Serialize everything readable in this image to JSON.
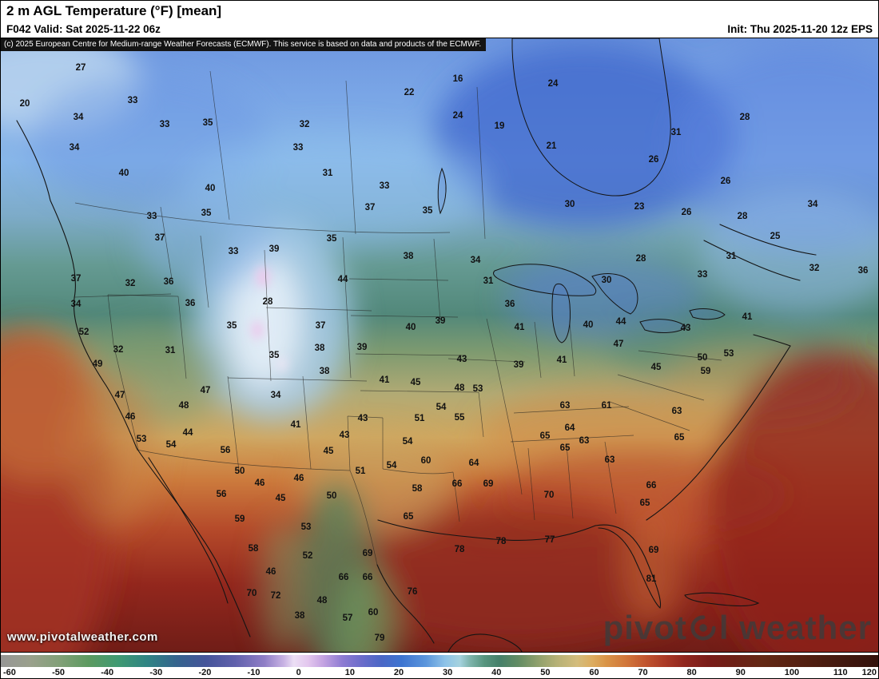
{
  "header": {
    "title": "2 m AGL Temperature (°F) [mean]",
    "valid": "F042 Valid: Sat 2025-11-22 06z",
    "init": "Init: Thu 2025-11-20 12z EPS"
  },
  "copyright": "(c) 2025 European Centre for Medium-range Weather Forecasts (ECMWF). This service is based on data and products of the ECMWF.",
  "watermark": {
    "url": "www.pivotalweather.com",
    "brand_left": "pivot",
    "brand_right": "l weather"
  },
  "colorbar": {
    "min": -60,
    "max": 120,
    "unit": "°F",
    "ticks": [
      "-60",
      "-50",
      "-40",
      "-30",
      "-20",
      "-10",
      "0",
      "10",
      "20",
      "30",
      "40",
      "50",
      "60",
      "70",
      "80",
      "90",
      "100",
      "110",
      "120"
    ],
    "stops": [
      {
        "t": -60,
        "c": "#969696"
      },
      {
        "t": -54,
        "c": "#9aa08c"
      },
      {
        "t": -48,
        "c": "#82a078"
      },
      {
        "t": -42,
        "c": "#5c9a60"
      },
      {
        "t": -36,
        "c": "#3f9a72"
      },
      {
        "t": -30,
        "c": "#2f8484"
      },
      {
        "t": -24,
        "c": "#35648e"
      },
      {
        "t": -18,
        "c": "#45549a"
      },
      {
        "t": -12,
        "c": "#6161ac"
      },
      {
        "t": -6,
        "c": "#8f7ec6"
      },
      {
        "t": -2,
        "c": "#c9b4e4"
      },
      {
        "t": 0,
        "c": "#ecdff5"
      },
      {
        "t": 3,
        "c": "#e3c6ee"
      },
      {
        "t": 6,
        "c": "#c4a3e2"
      },
      {
        "t": 10,
        "c": "#8d7bd2"
      },
      {
        "t": 14,
        "c": "#6a6cca"
      },
      {
        "t": 18,
        "c": "#4a67c6"
      },
      {
        "t": 22,
        "c": "#3d74d0"
      },
      {
        "t": 27,
        "c": "#5a95dc"
      },
      {
        "t": 31,
        "c": "#8ec3e8"
      },
      {
        "t": 34,
        "c": "#a5d2de"
      },
      {
        "t": 36,
        "c": "#7fb5ad"
      },
      {
        "t": 39,
        "c": "#57957f"
      },
      {
        "t": 42,
        "c": "#45806a"
      },
      {
        "t": 46,
        "c": "#628c63"
      },
      {
        "t": 50,
        "c": "#8fa06c"
      },
      {
        "t": 54,
        "c": "#b7b176"
      },
      {
        "t": 58,
        "c": "#d3bc7c"
      },
      {
        "t": 61,
        "c": "#dcad60"
      },
      {
        "t": 64,
        "c": "#d99447"
      },
      {
        "t": 68,
        "c": "#d1763a"
      },
      {
        "t": 72,
        "c": "#c1552f"
      },
      {
        "t": 76,
        "c": "#ab3a26"
      },
      {
        "t": 80,
        "c": "#90261e"
      },
      {
        "t": 85,
        "c": "#791c18"
      },
      {
        "t": 90,
        "c": "#6d2016"
      },
      {
        "t": 96,
        "c": "#632815"
      },
      {
        "t": 102,
        "c": "#582212"
      },
      {
        "t": 110,
        "c": "#471b10"
      },
      {
        "t": 120,
        "c": "#32110c"
      }
    ]
  },
  "map": {
    "unit": "°F",
    "labels": [
      [
        27,
        100,
        87
      ],
      [
        16,
        572,
        101
      ],
      [
        24,
        691,
        107
      ],
      [
        22,
        511,
        118
      ],
      [
        20,
        30,
        132
      ],
      [
        33,
        165,
        128
      ],
      [
        34,
        97,
        149
      ],
      [
        33,
        205,
        158
      ],
      [
        35,
        259,
        156
      ],
      [
        32,
        380,
        158
      ],
      [
        24,
        572,
        147
      ],
      [
        19,
        624,
        160
      ],
      [
        28,
        931,
        149
      ],
      [
        34,
        92,
        187
      ],
      [
        33,
        372,
        187
      ],
      [
        21,
        689,
        185
      ],
      [
        26,
        817,
        202
      ],
      [
        31,
        845,
        168
      ],
      [
        40,
        154,
        219
      ],
      [
        31,
        409,
        219
      ],
      [
        26,
        907,
        229
      ],
      [
        40,
        262,
        238
      ],
      [
        33,
        480,
        235
      ],
      [
        37,
        462,
        262
      ],
      [
        35,
        534,
        266
      ],
      [
        33,
        189,
        273
      ],
      [
        35,
        257,
        269
      ],
      [
        30,
        712,
        258
      ],
      [
        23,
        799,
        261
      ],
      [
        26,
        858,
        268
      ],
      [
        28,
        928,
        273
      ],
      [
        34,
        1016,
        258
      ],
      [
        37,
        199,
        300
      ],
      [
        35,
        414,
        301
      ],
      [
        33,
        291,
        317
      ],
      [
        39,
        342,
        314
      ],
      [
        38,
        510,
        323
      ],
      [
        34,
        594,
        328
      ],
      [
        31,
        914,
        323
      ],
      [
        28,
        801,
        326
      ],
      [
        25,
        969,
        298
      ],
      [
        32,
        1018,
        338
      ],
      [
        36,
        1079,
        341
      ],
      [
        37,
        94,
        351
      ],
      [
        32,
        162,
        357
      ],
      [
        36,
        210,
        355
      ],
      [
        44,
        428,
        352
      ],
      [
        31,
        610,
        354
      ],
      [
        30,
        758,
        353
      ],
      [
        33,
        878,
        346
      ],
      [
        34,
        94,
        383
      ],
      [
        36,
        237,
        382
      ],
      [
        28,
        334,
        380
      ],
      [
        36,
        637,
        383
      ],
      [
        35,
        289,
        410
      ],
      [
        37,
        400,
        410
      ],
      [
        52,
        104,
        418
      ],
      [
        40,
        513,
        412
      ],
      [
        39,
        550,
        404
      ],
      [
        41,
        649,
        412
      ],
      [
        40,
        735,
        409
      ],
      [
        44,
        776,
        405
      ],
      [
        41,
        934,
        399
      ],
      [
        43,
        857,
        413
      ],
      [
        32,
        147,
        440
      ],
      [
        31,
        212,
        441
      ],
      [
        35,
        342,
        447
      ],
      [
        38,
        399,
        438
      ],
      [
        39,
        452,
        437
      ],
      [
        43,
        577,
        452
      ],
      [
        39,
        648,
        459
      ],
      [
        41,
        702,
        453
      ],
      [
        47,
        773,
        433
      ],
      [
        45,
        820,
        462
      ],
      [
        50,
        878,
        450
      ],
      [
        53,
        911,
        445
      ],
      [
        49,
        121,
        458
      ],
      [
        38,
        405,
        467
      ],
      [
        41,
        480,
        478
      ],
      [
        45,
        519,
        481
      ],
      [
        48,
        574,
        488
      ],
      [
        53,
        597,
        489
      ],
      [
        59,
        882,
        467
      ],
      [
        47,
        149,
        497
      ],
      [
        47,
        256,
        491
      ],
      [
        34,
        344,
        497
      ],
      [
        48,
        229,
        510
      ],
      [
        54,
        551,
        512
      ],
      [
        63,
        706,
        510
      ],
      [
        61,
        758,
        510
      ],
      [
        63,
        846,
        517
      ],
      [
        46,
        162,
        524
      ],
      [
        41,
        369,
        534
      ],
      [
        43,
        453,
        526
      ],
      [
        51,
        524,
        526
      ],
      [
        55,
        574,
        525
      ],
      [
        64,
        712,
        538
      ],
      [
        65,
        681,
        548
      ],
      [
        63,
        730,
        554
      ],
      [
        65,
        849,
        550
      ],
      [
        53,
        176,
        552
      ],
      [
        54,
        213,
        559
      ],
      [
        44,
        234,
        544
      ],
      [
        43,
        430,
        547
      ],
      [
        54,
        509,
        555
      ],
      [
        56,
        281,
        566
      ],
      [
        45,
        410,
        567
      ],
      [
        60,
        532,
        579
      ],
      [
        64,
        592,
        582
      ],
      [
        65,
        706,
        563
      ],
      [
        63,
        762,
        578
      ],
      [
        54,
        489,
        585
      ],
      [
        50,
        299,
        592
      ],
      [
        46,
        324,
        607
      ],
      [
        46,
        373,
        601
      ],
      [
        51,
        450,
        592
      ],
      [
        58,
        521,
        614
      ],
      [
        66,
        571,
        608
      ],
      [
        69,
        610,
        608
      ],
      [
        70,
        686,
        622
      ],
      [
        66,
        814,
        610
      ],
      [
        56,
        276,
        621
      ],
      [
        45,
        350,
        626
      ],
      [
        50,
        414,
        623
      ],
      [
        65,
        806,
        632
      ],
      [
        59,
        299,
        652
      ],
      [
        53,
        382,
        662
      ],
      [
        65,
        510,
        649
      ],
      [
        69,
        817,
        691
      ],
      [
        81,
        814,
        727
      ],
      [
        78,
        574,
        690
      ],
      [
        78,
        626,
        680
      ],
      [
        77,
        687,
        678
      ],
      [
        52,
        384,
        698
      ],
      [
        58,
        316,
        689
      ],
      [
        46,
        338,
        718
      ],
      [
        66,
        429,
        725
      ],
      [
        66,
        459,
        725
      ],
      [
        69,
        459,
        695
      ],
      [
        72,
        344,
        748
      ],
      [
        70,
        314,
        745
      ],
      [
        48,
        402,
        754
      ],
      [
        38,
        374,
        773
      ],
      [
        57,
        434,
        776
      ],
      [
        60,
        466,
        769
      ],
      [
        79,
        474,
        801
      ],
      [
        76,
        515,
        743
      ]
    ]
  }
}
